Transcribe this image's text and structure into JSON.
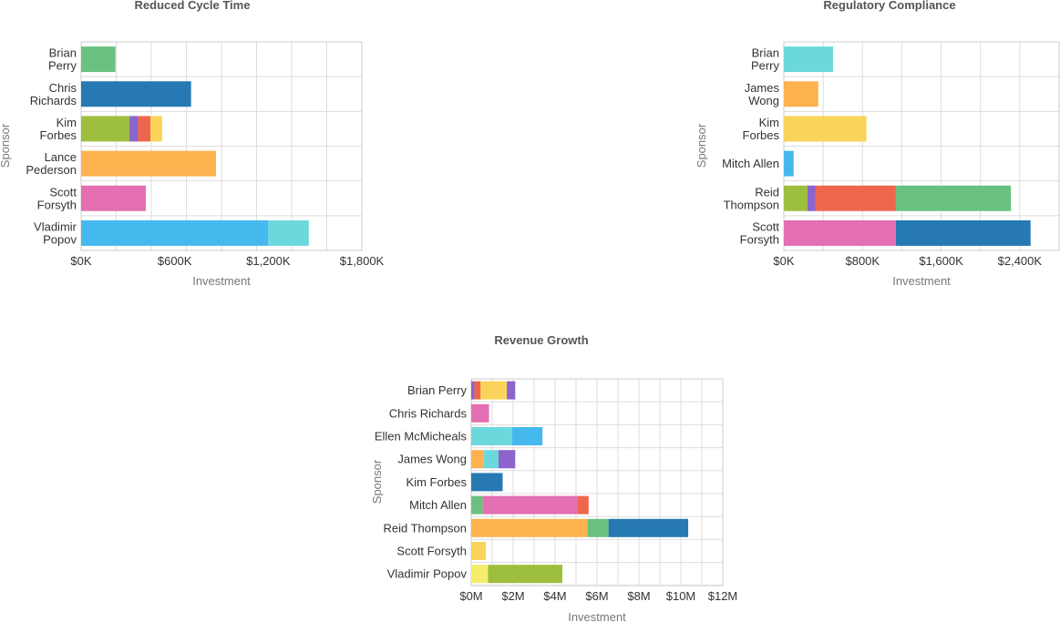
{
  "colors": {
    "green": "#6ac17f",
    "darkblue": "#2679b2",
    "olive": "#9dbf3d",
    "purple": "#8b64cc",
    "red": "#ee674d",
    "yellow": "#fad45a",
    "orange": "#fdb24f",
    "pink": "#e46fb2",
    "skyblue": "#45b9ee",
    "cyan": "#6bd8dc",
    "lightyellow": "#f5ec6c"
  },
  "chart_data": [
    {
      "type": "bar",
      "orientation": "horizontal",
      "stacked": true,
      "title": "Reduced Cycle Time",
      "xlabel": "Investment",
      "ylabel": "Sponsor",
      "xlim": [
        0,
        1800000
      ],
      "ticks": [
        0,
        600000,
        1200000,
        1800000
      ],
      "tick_labels": [
        "$0K",
        "$600K",
        "$1,200K",
        "$1,800K"
      ],
      "categories": [
        {
          "name": "Brian Perry",
          "lines": [
            "Brian",
            "Perry"
          ]
        },
        {
          "name": "Chris Richards",
          "lines": [
            "Chris",
            "Richards"
          ]
        },
        {
          "name": "Kim Forbes",
          "lines": [
            "Kim",
            "Forbes"
          ]
        },
        {
          "name": "Lance Pederson",
          "lines": [
            "Lance",
            "Pederson"
          ]
        },
        {
          "name": "Scott Forsyth",
          "lines": [
            "Scott",
            "Forsyth"
          ]
        },
        {
          "name": "Vladimir Popov",
          "lines": [
            "Vladimir",
            "Popov"
          ]
        }
      ],
      "rows": [
        [
          {
            "value": 220000,
            "color": "green"
          }
        ],
        [
          {
            "value": 705000,
            "color": "darkblue"
          }
        ],
        [
          {
            "value": 310000,
            "color": "olive"
          },
          {
            "value": 55000,
            "color": "purple"
          },
          {
            "value": 80000,
            "color": "red"
          },
          {
            "value": 75000,
            "color": "yellow"
          }
        ],
        [
          {
            "value": 865000,
            "color": "orange"
          }
        ],
        [
          {
            "value": 415000,
            "color": "pink"
          }
        ],
        [
          {
            "value": 1200000,
            "color": "skyblue"
          },
          {
            "value": 260000,
            "color": "cyan"
          }
        ]
      ]
    },
    {
      "type": "bar",
      "orientation": "horizontal",
      "stacked": true,
      "title": "Regulatory Compliance",
      "xlabel": "Investment",
      "ylabel": "Sponsor",
      "xlim": [
        0,
        2800000
      ],
      "ticks": [
        0,
        800000,
        1600000,
        2400000
      ],
      "tick_labels": [
        "$0K",
        "$800K",
        "$1,600K",
        "$2,400K"
      ],
      "categories": [
        {
          "name": "Brian Perry",
          "lines": [
            "Brian",
            "Perry"
          ]
        },
        {
          "name": "James Wong",
          "lines": [
            "James",
            "Wong"
          ]
        },
        {
          "name": "Kim Forbes",
          "lines": [
            "Kim",
            "Forbes"
          ]
        },
        {
          "name": "Mitch Allen",
          "lines": [
            "Mitch Allen"
          ]
        },
        {
          "name": "Reid Thompson",
          "lines": [
            "Reid",
            "Thompson"
          ]
        },
        {
          "name": "Scott Forsyth",
          "lines": [
            "Scott",
            "Forsyth"
          ]
        }
      ],
      "rows": [
        [
          {
            "value": 500000,
            "color": "cyan"
          }
        ],
        [
          {
            "value": 350000,
            "color": "orange"
          }
        ],
        [
          {
            "value": 840000,
            "color": "yellow"
          }
        ],
        [
          {
            "value": 100000,
            "color": "skyblue"
          }
        ],
        [
          {
            "value": 240000,
            "color": "olive"
          },
          {
            "value": 80000,
            "color": "purple"
          },
          {
            "value": 820000,
            "color": "red"
          },
          {
            "value": 1170000,
            "color": "green"
          }
        ],
        [
          {
            "value": 1140000,
            "color": "pink"
          },
          {
            "value": 1370000,
            "color": "darkblue"
          }
        ]
      ]
    },
    {
      "type": "bar",
      "orientation": "horizontal",
      "stacked": true,
      "title": "Revenue Growth",
      "xlabel": "Investment",
      "ylabel": "Sponsor",
      "xlim": [
        0,
        12000000
      ],
      "ticks": [
        0,
        2000000,
        4000000,
        6000000,
        8000000,
        10000000,
        12000000
      ],
      "tick_labels": [
        "$0M",
        "$2M",
        "$4M",
        "$6M",
        "$8M",
        "$10M",
        "$12M"
      ],
      "categories": [
        {
          "name": "Brian Perry",
          "lines": [
            "Brian Perry"
          ]
        },
        {
          "name": "Chris Richards",
          "lines": [
            "Chris Richards"
          ]
        },
        {
          "name": "Ellen McMicheals",
          "lines": [
            "Ellen McMicheals"
          ]
        },
        {
          "name": "James Wong",
          "lines": [
            "James Wong"
          ]
        },
        {
          "name": "Kim Forbes",
          "lines": [
            "Kim Forbes"
          ]
        },
        {
          "name": "Mitch Allen",
          "lines": [
            "Mitch Allen"
          ]
        },
        {
          "name": "Reid Thompson",
          "lines": [
            "Reid Thompson"
          ]
        },
        {
          "name": "Scott Forsyth",
          "lines": [
            "Scott Forsyth"
          ]
        },
        {
          "name": "Vladimir Popov",
          "lines": [
            "Vladimir Popov"
          ]
        }
      ],
      "rows": [
        [
          {
            "value": 150000,
            "color": "purple"
          },
          {
            "value": 300000,
            "color": "red"
          },
          {
            "value": 1250000,
            "color": "yellow"
          },
          {
            "value": 400000,
            "color": "purple"
          }
        ],
        [
          {
            "value": 850000,
            "color": "pink"
          }
        ],
        [
          {
            "value": 1950000,
            "color": "cyan"
          },
          {
            "value": 1450000,
            "color": "skyblue"
          }
        ],
        [
          {
            "value": 600000,
            "color": "orange"
          },
          {
            "value": 700000,
            "color": "cyan"
          },
          {
            "value": 800000,
            "color": "purple"
          }
        ],
        [
          {
            "value": 1500000,
            "color": "darkblue"
          }
        ],
        [
          {
            "value": 550000,
            "color": "green"
          },
          {
            "value": 4500000,
            "color": "pink"
          },
          {
            "value": 550000,
            "color": "red"
          }
        ],
        [
          {
            "value": 5550000,
            "color": "orange"
          },
          {
            "value": 1000000,
            "color": "green"
          },
          {
            "value": 3800000,
            "color": "darkblue"
          }
        ],
        [
          {
            "value": 700000,
            "color": "yellow"
          }
        ],
        [
          {
            "value": 800000,
            "color": "lightyellow"
          },
          {
            "value": 3550000,
            "color": "olive"
          }
        ]
      ]
    }
  ]
}
